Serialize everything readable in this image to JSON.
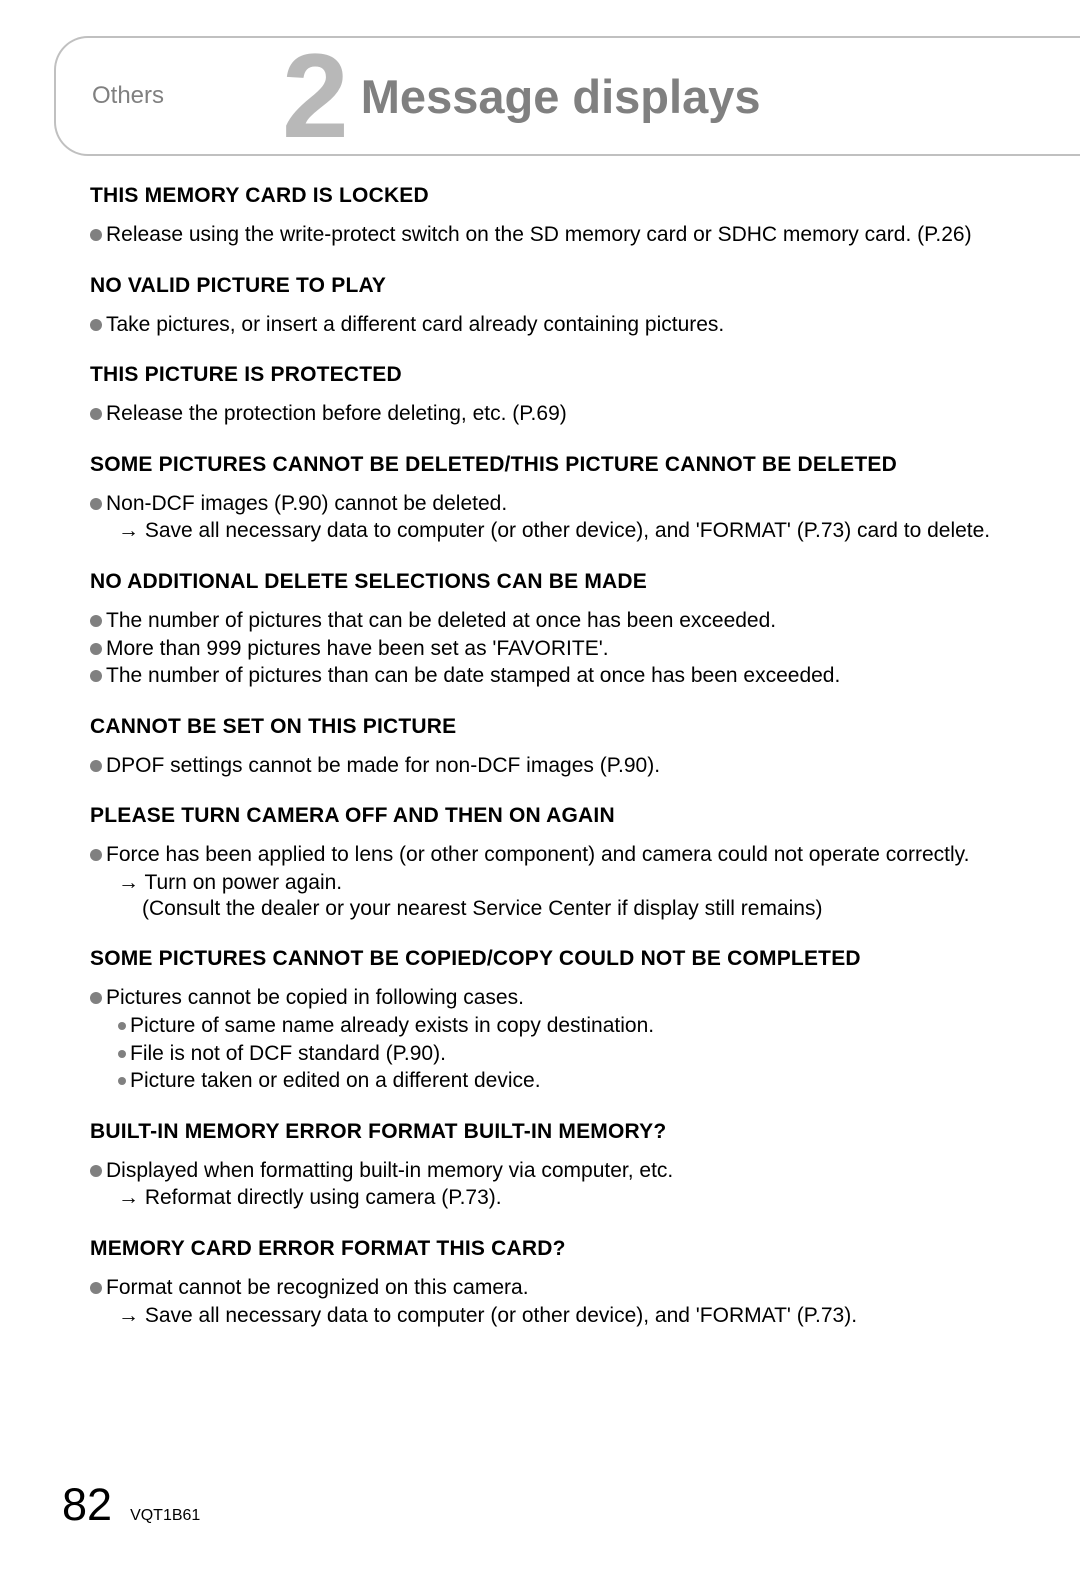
{
  "header": {
    "category": "Others",
    "number": "2",
    "title": "Message displays"
  },
  "sections": [
    {
      "title": "THIS MEMORY CARD IS LOCKED",
      "bullets": [
        {
          "type": "main",
          "text": "Release using the write-protect switch on the SD memory card or SDHC memory card. (P.26)"
        }
      ]
    },
    {
      "title": "NO VALID PICTURE TO PLAY",
      "bullets": [
        {
          "type": "main",
          "text": "Take pictures, or insert a different card already containing pictures."
        }
      ]
    },
    {
      "title": "THIS PICTURE IS PROTECTED",
      "bullets": [
        {
          "type": "main",
          "text": "Release the protection before deleting, etc. (P.69)"
        }
      ]
    },
    {
      "title": "SOME PICTURES CANNOT BE DELETED/THIS PICTURE CANNOT BE DELETED",
      "bullets": [
        {
          "type": "main",
          "text": "Non-DCF images (P.90) cannot be deleted."
        },
        {
          "type": "arrow",
          "text": "→ Save all necessary data to computer (or other device), and 'FORMAT' (P.73) card to delete."
        }
      ]
    },
    {
      "title": "NO ADDITIONAL DELETE SELECTIONS CAN BE MADE",
      "bullets": [
        {
          "type": "main",
          "text": "The number of pictures that can be deleted at once has been exceeded."
        },
        {
          "type": "main",
          "text": "More than 999 pictures have been set as 'FAVORITE'."
        },
        {
          "type": "main",
          "text": "The number of pictures than can be date stamped at once has been exceeded."
        }
      ]
    },
    {
      "title": "CANNOT BE SET ON THIS PICTURE",
      "bullets": [
        {
          "type": "main",
          "text": "DPOF settings cannot be made for non-DCF images (P.90)."
        }
      ]
    },
    {
      "title": "PLEASE TURN CAMERA OFF AND THEN ON AGAIN",
      "bullets": [
        {
          "type": "main",
          "text": "Force has been applied to lens (or other component) and camera could not operate correctly."
        },
        {
          "type": "arrow",
          "text": "→ Turn on power again."
        },
        {
          "type": "sub",
          "text": "(Consult the dealer or your nearest Service Center if display still remains)"
        }
      ]
    },
    {
      "title": "SOME PICTURES CANNOT BE COPIED/COPY COULD NOT BE COMPLETED",
      "bullets": [
        {
          "type": "main",
          "text": "Pictures cannot be copied in following cases."
        },
        {
          "type": "sub-bullet",
          "text": "Picture of same name already exists in copy destination."
        },
        {
          "type": "sub-bullet",
          "text": "File is not of DCF standard (P.90)."
        },
        {
          "type": "sub-bullet",
          "text": "Picture taken or edited on a different device."
        }
      ]
    },
    {
      "title": "BUILT-IN MEMORY ERROR    FORMAT BUILT-IN MEMORY?",
      "bullets": [
        {
          "type": "main",
          "text": "Displayed when formatting built-in memory via computer, etc."
        },
        {
          "type": "arrow",
          "text": "→ Reformat directly using camera (P.73)."
        }
      ]
    },
    {
      "title": "MEMORY CARD ERROR    FORMAT THIS CARD?",
      "bullets": [
        {
          "type": "main",
          "text": "Format cannot be recognized on this camera."
        },
        {
          "type": "arrow",
          "text": "→ Save all necessary data to computer (or other device), and 'FORMAT' (P.73)."
        }
      ]
    }
  ],
  "footer": {
    "page": "82",
    "code": "VQT1B61"
  },
  "style": {
    "bg": "#ffffff",
    "text_color": "#000000",
    "header_border": "#c0c0c0",
    "header_text": "#808080",
    "number_color": "#b8b8b8",
    "bullet_color": "#808080",
    "title_fontsize": 47,
    "section_title_fontsize": 21,
    "body_fontsize": 21,
    "page_fontsize": 45
  }
}
